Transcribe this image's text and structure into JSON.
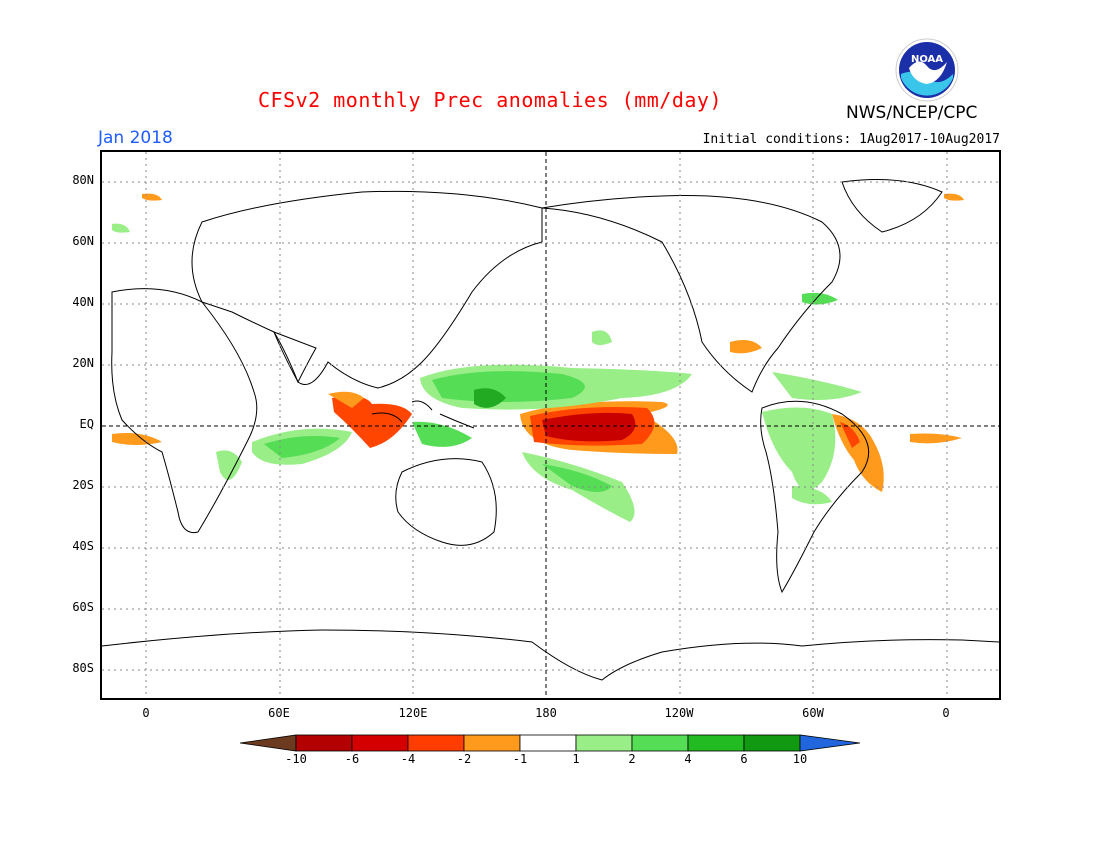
{
  "header": {
    "title": "CFSv2 monthly Prec anomalies (mm/day)",
    "month": "Jan 2018",
    "initial_conditions": "Initial conditions: 1Aug2017-10Aug2017",
    "agency": "NWS/NCEP/CPC",
    "logo_text": "NOAA"
  },
  "axes": {
    "y_labels": [
      "80N",
      "60N",
      "40N",
      "20N",
      "EQ",
      "20S",
      "40S",
      "60S",
      "80S"
    ],
    "x_labels": [
      "0",
      "60E",
      "120E",
      "180",
      "120W",
      "60W",
      "0"
    ]
  },
  "colorbar": {
    "ticks": [
      "-10",
      "-6",
      "-4",
      "-2",
      "-1",
      "1",
      "2",
      "4",
      "6",
      "10"
    ],
    "colors": [
      "#6b3a1f",
      "#b30000",
      "#d40000",
      "#ff3d00",
      "#ff9a1c",
      "#ffffff",
      "#99ee88",
      "#55dd55",
      "#22bb22",
      "#119911",
      "#2266dd"
    ]
  },
  "legend_colors": {
    "dry_strong": "#c80000",
    "dry_mid": "#ff4500",
    "dry_weak": "#ff9a1c",
    "wet_weak": "#99ee88",
    "wet_mid": "#55dd55",
    "wet_strong": "#22aa22"
  }
}
